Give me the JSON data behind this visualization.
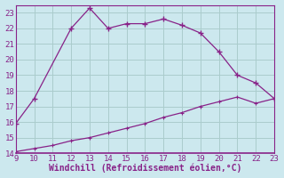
{
  "xlabel": "Windchill (Refroidissement éolien,°C)",
  "bg_color": "#cce8ee",
  "grid_color": "#aacccc",
  "line_color": "#882288",
  "x_main": [
    9,
    10,
    11,
    12,
    13,
    14,
    15,
    16,
    17,
    18,
    19,
    20,
    21,
    22,
    23
  ],
  "y_main": [
    15.9,
    17.5,
    22.0,
    23.3,
    22.0,
    22.3,
    22.3,
    22.6,
    22.2,
    21.7,
    20.5,
    19.0,
    18.5,
    17.5,
    null
  ],
  "x_line2": [
    9,
    10,
    11,
    12,
    13,
    14,
    15,
    16,
    17,
    18,
    19,
    20,
    21,
    22,
    23
  ],
  "y_line2": [
    14.1,
    14.3,
    14.5,
    14.8,
    15.0,
    15.3,
    15.6,
    15.9,
    16.3,
    16.6,
    17.0,
    17.3,
    17.6,
    17.2,
    17.5
  ],
  "xlim": [
    9,
    23
  ],
  "ylim": [
    14,
    23.5
  ],
  "xticks": [
    9,
    10,
    11,
    12,
    13,
    14,
    15,
    16,
    17,
    18,
    19,
    20,
    21,
    22,
    23
  ],
  "yticks": [
    14,
    15,
    16,
    17,
    18,
    19,
    20,
    21,
    22,
    23
  ],
  "tick_fontsize": 6.5,
  "label_fontsize": 7
}
